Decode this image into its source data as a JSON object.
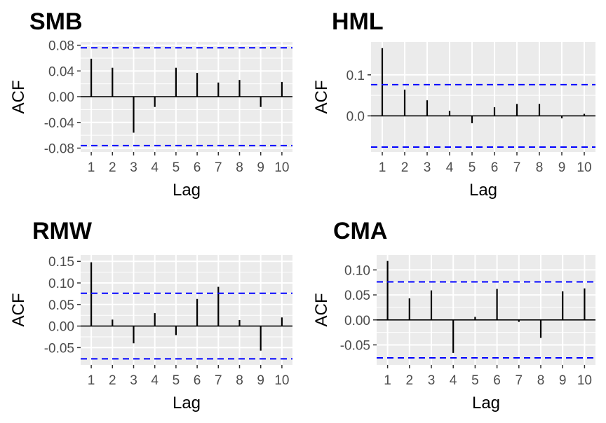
{
  "chart_data": [
    {
      "type": "bar",
      "title": "SMB",
      "xlabel": "Lag",
      "ylabel": "ACF",
      "x": [
        1,
        2,
        3,
        4,
        5,
        6,
        7,
        8,
        9,
        10
      ],
      "values": [
        0.059,
        0.045,
        -0.056,
        -0.016,
        0.045,
        0.037,
        0.022,
        0.026,
        -0.016,
        0.023
      ],
      "ylim": [
        -0.086,
        0.085
      ],
      "yticks": [
        -0.08,
        -0.04,
        0.0,
        0.04,
        0.08
      ],
      "ytick_labels": [
        "-0.08",
        "-0.04",
        "0.00",
        "0.04",
        "0.08"
      ],
      "confidence_bound": 0.076,
      "grid": true
    },
    {
      "type": "bar",
      "title": "HML",
      "xlabel": "Lag",
      "ylabel": "ACF",
      "x": [
        1,
        2,
        3,
        4,
        5,
        6,
        7,
        8,
        9,
        10
      ],
      "values": [
        0.165,
        0.064,
        0.038,
        0.012,
        -0.018,
        0.021,
        0.029,
        0.029,
        -0.006,
        0.005
      ],
      "ylim": [
        -0.088,
        0.18
      ],
      "yticks": [
        0.0,
        0.1
      ],
      "ytick_labels": [
        "0.0",
        "0.1"
      ],
      "confidence_bound": 0.076,
      "grid": true
    },
    {
      "type": "bar",
      "title": "RMW",
      "xlabel": "Lag",
      "ylabel": "ACF",
      "x": [
        1,
        2,
        3,
        4,
        5,
        6,
        7,
        8,
        9,
        10
      ],
      "values": [
        0.148,
        0.015,
        -0.04,
        0.03,
        -0.021,
        0.063,
        0.091,
        0.014,
        -0.057,
        0.02
      ],
      "ylim": [
        -0.09,
        0.165
      ],
      "yticks": [
        -0.05,
        0.0,
        0.05,
        0.1,
        0.15
      ],
      "ytick_labels": [
        "-0.05",
        "0.00",
        "0.05",
        "0.10",
        "0.15"
      ],
      "confidence_bound": 0.076,
      "grid": true
    },
    {
      "type": "bar",
      "title": "CMA",
      "xlabel": "Lag",
      "ylabel": "ACF",
      "x": [
        1,
        2,
        3,
        4,
        5,
        6,
        7,
        8,
        9,
        10
      ],
      "values": [
        0.118,
        0.043,
        0.059,
        -0.066,
        0.006,
        0.062,
        -0.004,
        -0.036,
        0.057,
        0.063
      ],
      "ylim": [
        -0.09,
        0.13
      ],
      "yticks": [
        -0.05,
        0.0,
        0.05,
        0.1
      ],
      "ytick_labels": [
        "-0.05",
        "0.00",
        "0.05",
        "0.10"
      ],
      "confidence_bound": 0.076,
      "grid": true
    }
  ],
  "colors": {
    "panel_background": "#ebebeb",
    "grid_line": "#ffffff",
    "bar": "#000000",
    "bound_line": "#0000ff",
    "tick_text": "#4d4d4d",
    "tick_mark": "#333333"
  }
}
